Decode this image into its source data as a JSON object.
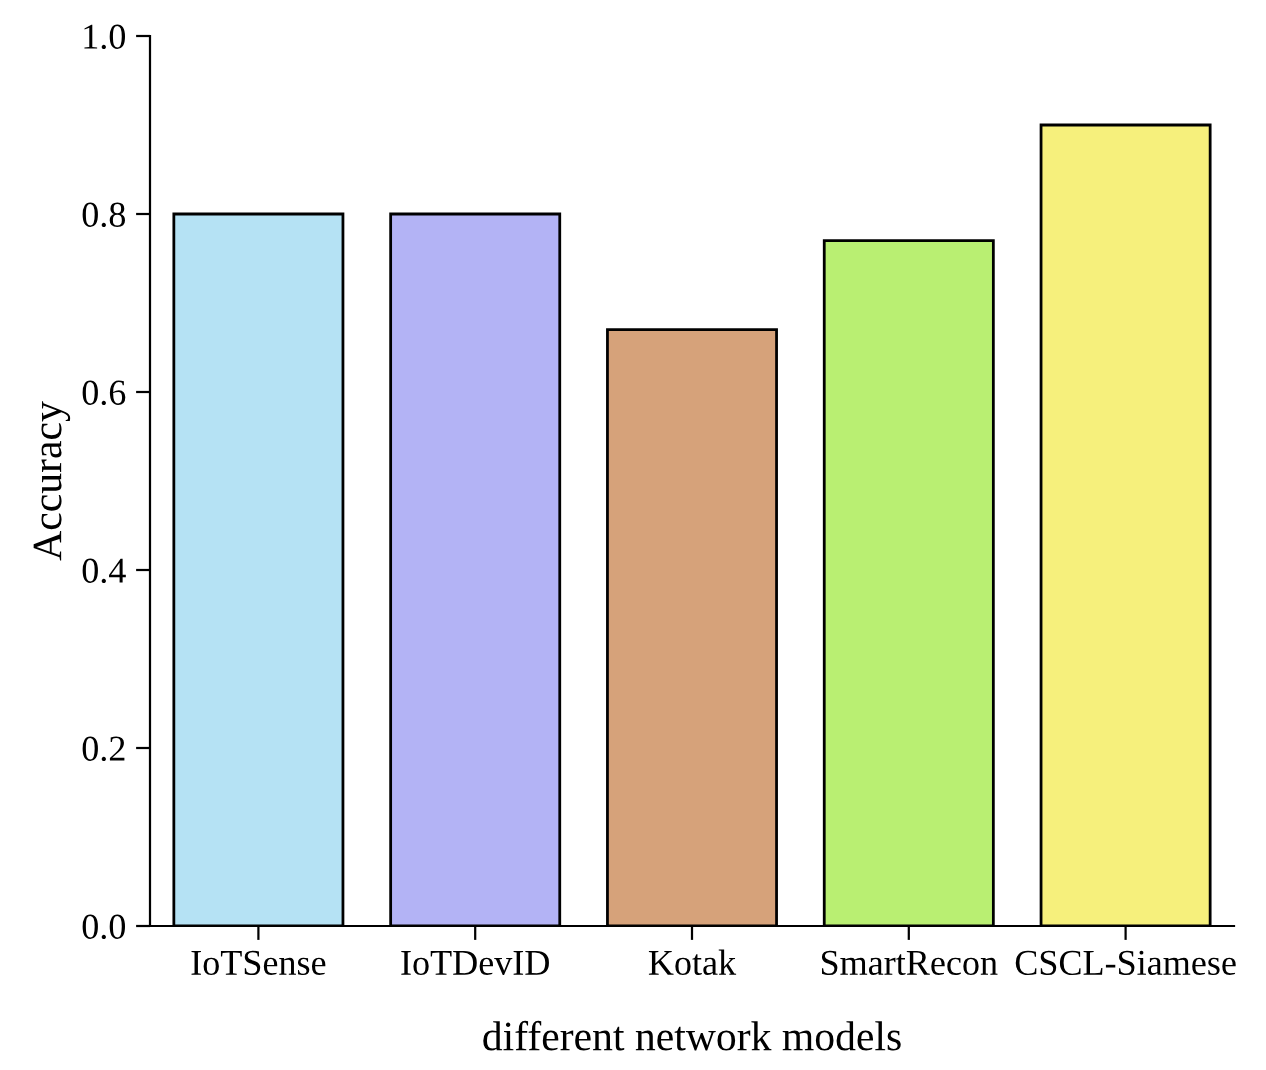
{
  "chart_data": {
    "type": "bar",
    "xlabel": "different network models",
    "ylabel": "Accuracy",
    "categories": [
      "IoTSense",
      "IoTDevID",
      "Kotak",
      "SmartRecon",
      "CSCL-Siamese"
    ],
    "values": [
      0.8,
      0.8,
      0.67,
      0.77,
      0.9
    ],
    "colors": [
      "#b5e2f4",
      "#b3b3f5",
      "#d6a27a",
      "#b9ef72",
      "#f6f07c"
    ],
    "ylim": [
      0,
      1.0
    ],
    "yticks": [
      {
        "value": 0,
        "label": "0.0"
      },
      {
        "value": 0.2,
        "label": "0.2"
      },
      {
        "value": 0.4,
        "label": "0.4"
      },
      {
        "value": 0.6,
        "label": "0.6"
      },
      {
        "value": 0.8,
        "label": "0.8"
      },
      {
        "value": 1.0,
        "label": "1.0"
      }
    ],
    "grid": false,
    "legend": false
  }
}
